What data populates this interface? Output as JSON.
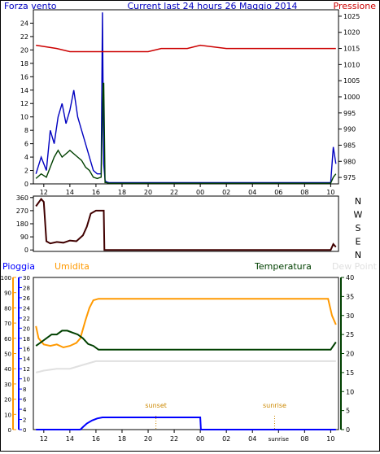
{
  "header": {
    "left_label": "Forza vento",
    "title": "Current last 24 hours 26 Maggio 2014",
    "right_label": "Pressione"
  },
  "colors": {
    "wind_gust": "#0000c0",
    "wind_avg": "#004000",
    "pressure": "#cc0000",
    "direction": "#400000",
    "rain": "#0000ff",
    "humidity": "#ff9900",
    "temperature": "#004000",
    "dewpoint": "#e0e0e0",
    "annotation": "#cc8800"
  },
  "chart_data": [
    {
      "type": "line",
      "name": "wind-pressure",
      "x_ticks": [
        "12",
        "14",
        "16",
        "18",
        "20",
        "22",
        "00",
        "02",
        "04",
        "06",
        "08",
        "10"
      ],
      "x_range": [
        11.2,
        34.6
      ],
      "y_left": {
        "label": "Forza vento",
        "range": [
          0,
          26
        ],
        "ticks": [
          "0",
          "2",
          "4",
          "6",
          "8",
          "10",
          "12",
          "14",
          "16",
          "18",
          "20",
          "22",
          "24"
        ]
      },
      "y_right": {
        "label": "Pressione",
        "range": [
          973,
          1027
        ],
        "ticks": [
          "975",
          "980",
          "985",
          "990",
          "995",
          "1000",
          "1005",
          "1010",
          "1015",
          "1020",
          "1025"
        ]
      },
      "series": [
        {
          "key": "gust",
          "x": [
            11.4,
            11.8,
            12.2,
            12.5,
            12.8,
            13.1,
            13.4,
            13.7,
            14.0,
            14.3,
            14.6,
            14.9,
            15.2,
            15.5,
            15.8,
            16.1,
            16.4,
            16.5,
            16.55,
            16.6,
            16.7,
            16.8,
            17.0,
            34.0,
            34.2,
            34.4
          ],
          "y": [
            1.5,
            4,
            2,
            8,
            6,
            10,
            12,
            9,
            11,
            14,
            10,
            8,
            6,
            4,
            2,
            1.5,
            1.5,
            25.6,
            14,
            3,
            0.5,
            0.3,
            0.2,
            0.2,
            5.5,
            3
          ]
        },
        {
          "key": "avg",
          "x": [
            11.4,
            11.8,
            12.2,
            12.5,
            12.8,
            13.1,
            13.4,
            13.7,
            14.0,
            14.3,
            14.6,
            14.9,
            15.2,
            15.5,
            15.8,
            16.1,
            16.4,
            16.55,
            16.6,
            16.7,
            16.8,
            17.0,
            34.0,
            34.2,
            34.4
          ],
          "y": [
            0.8,
            1.5,
            1,
            2.5,
            4,
            5,
            4,
            4.5,
            5,
            4.5,
            4,
            3.5,
            2.5,
            2,
            1,
            0.8,
            1,
            15,
            15,
            0.2,
            0.2,
            0.1,
            0.1,
            1,
            1.5
          ]
        },
        {
          "key": "pressure",
          "axis": "right",
          "x": [
            11.4,
            13,
            14,
            15,
            16,
            17,
            18,
            20,
            21,
            22,
            23,
            24,
            26,
            28,
            30,
            32,
            34.4
          ],
          "y": [
            1016,
            1015,
            1014,
            1014,
            1014,
            1014,
            1014,
            1014,
            1015,
            1015,
            1015,
            1016,
            1015,
            1015,
            1015,
            1015,
            1015
          ]
        }
      ]
    },
    {
      "type": "line",
      "name": "wind-direction",
      "x_range": [
        11.2,
        34.6
      ],
      "y_left": {
        "range": [
          -10,
          370
        ],
        "ticks": [
          "0",
          "90",
          "180",
          "270",
          "360"
        ]
      },
      "y_right_labels": [
        "N",
        "W",
        "S",
        "E",
        "N"
      ],
      "series": [
        {
          "key": "dir",
          "x": [
            11.4,
            11.8,
            12.0,
            12.2,
            12.5,
            13,
            13.5,
            14,
            14.5,
            15,
            15.3,
            15.6,
            16,
            16.5,
            16.6,
            16.65,
            17,
            34,
            34.2,
            34.4
          ],
          "y": [
            300,
            350,
            330,
            60,
            45,
            55,
            50,
            65,
            60,
            100,
            160,
            250,
            270,
            270,
            270,
            0,
            0,
            0,
            40,
            20
          ]
        }
      ]
    },
    {
      "type": "line",
      "name": "temp-hum-rain",
      "labels": {
        "rain": "Pioggia",
        "humidity": "Umidita",
        "temperature": "Temperatura",
        "dewpoint": "Dew Point"
      },
      "x_ticks": [
        "12",
        "14",
        "16",
        "18",
        "20",
        "22",
        "00",
        "02",
        "04",
        "sunrise",
        "08",
        "10"
      ],
      "x_range": [
        11.2,
        34.6
      ],
      "y_hum": {
        "range": [
          0,
          100
        ],
        "ticks": [
          "0",
          "10",
          "20",
          "30",
          "40",
          "50",
          "60",
          "70",
          "80",
          "90",
          "100"
        ]
      },
      "y_rain": {
        "range": [
          0,
          30
        ],
        "ticks": [
          "0",
          "2",
          "4",
          "6",
          "8",
          "10",
          "12",
          "14",
          "16",
          "18",
          "20",
          "22",
          "24",
          "26",
          "28",
          "30"
        ]
      },
      "y_temp": {
        "range": [
          0,
          40
        ],
        "ticks": [
          "0",
          "5",
          "10",
          "15",
          "20",
          "25",
          "30",
          "35",
          "40"
        ]
      },
      "annotations": [
        {
          "label": "sunset",
          "x": 20.6
        },
        {
          "label": "sunrise",
          "x": 29.7
        }
      ],
      "series": [
        {
          "key": "humidity",
          "axis": "hum",
          "x": [
            11.4,
            11.6,
            12,
            12.5,
            13,
            13.5,
            14,
            14.5,
            14.8,
            15.2,
            15.5,
            15.8,
            16.2,
            16.6,
            17,
            20,
            24,
            28,
            32,
            33.8,
            34.1,
            34.4
          ],
          "y": [
            68,
            60,
            56,
            55,
            56,
            54,
            55,
            57,
            60,
            72,
            80,
            85,
            86,
            86,
            86,
            86,
            86,
            86,
            86,
            86,
            75,
            69
          ]
        },
        {
          "key": "temperature",
          "axis": "temp",
          "x": [
            11.4,
            11.8,
            12.2,
            12.6,
            13,
            13.4,
            13.8,
            14.2,
            14.6,
            15,
            15.4,
            15.8,
            16.2,
            16.6,
            17,
            20,
            24,
            28,
            32,
            34,
            34.2,
            34.4
          ],
          "y": [
            22,
            23,
            24,
            25,
            25,
            26,
            26,
            25.5,
            25,
            24,
            22.5,
            22,
            21,
            21,
            21,
            21,
            21,
            21,
            21,
            21,
            22,
            23
          ]
        },
        {
          "key": "dewpoint",
          "axis": "temp",
          "x": [
            11.4,
            12,
            13,
            14,
            15,
            16,
            16.6,
            17,
            18,
            20,
            24,
            28,
            32,
            34.4
          ],
          "y": [
            15,
            15.5,
            16,
            16,
            17,
            18,
            18,
            18,
            18,
            18,
            18,
            18,
            18,
            18
          ]
        },
        {
          "key": "rain",
          "axis": "rain",
          "x": [
            11.4,
            14,
            14.8,
            15,
            15.3,
            15.7,
            16.1,
            16.5,
            17,
            20,
            24,
            24.05,
            28,
            32,
            34.4
          ],
          "y": [
            0,
            0,
            0,
            0.5,
            1.2,
            1.8,
            2.2,
            2.4,
            2.4,
            2.4,
            2.4,
            0,
            0,
            0,
            0
          ]
        }
      ]
    }
  ]
}
